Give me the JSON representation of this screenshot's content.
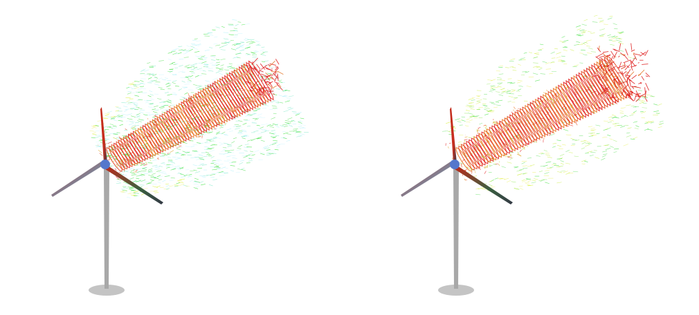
{
  "scenes": [
    {
      "id": "left",
      "wake": "dense",
      "envelope_colors": [
        "#22dd22",
        "#55e055",
        "#7fe8c8",
        "#aef0f8",
        "#ccf5ff"
      ],
      "core_colors": [
        "#e01010",
        "#e23a10",
        "#e86a10",
        "#d8a020",
        "#b8cc20"
      ],
      "tip_colors": [
        "#d4f020",
        "#f0f080"
      ]
    },
    {
      "id": "right",
      "wake": "split",
      "envelope_colors": [
        "#33dd33",
        "#66e066",
        "#99ea66",
        "#ccee44",
        "#e8f060"
      ],
      "core_colors": [
        "#e01010",
        "#e23a10",
        "#e86a10",
        "#e0a020",
        "#b8dd30"
      ],
      "tip_colors": [
        "#d4f020",
        "#f0f080"
      ]
    }
  ],
  "turbine": {
    "tower_color": "#a8a8a8",
    "base_color": "#c4c4c4",
    "hub_color": "#5577cc",
    "blade_colors": [
      "#c83020",
      "#7a8aa0",
      "#3a6040"
    ]
  }
}
